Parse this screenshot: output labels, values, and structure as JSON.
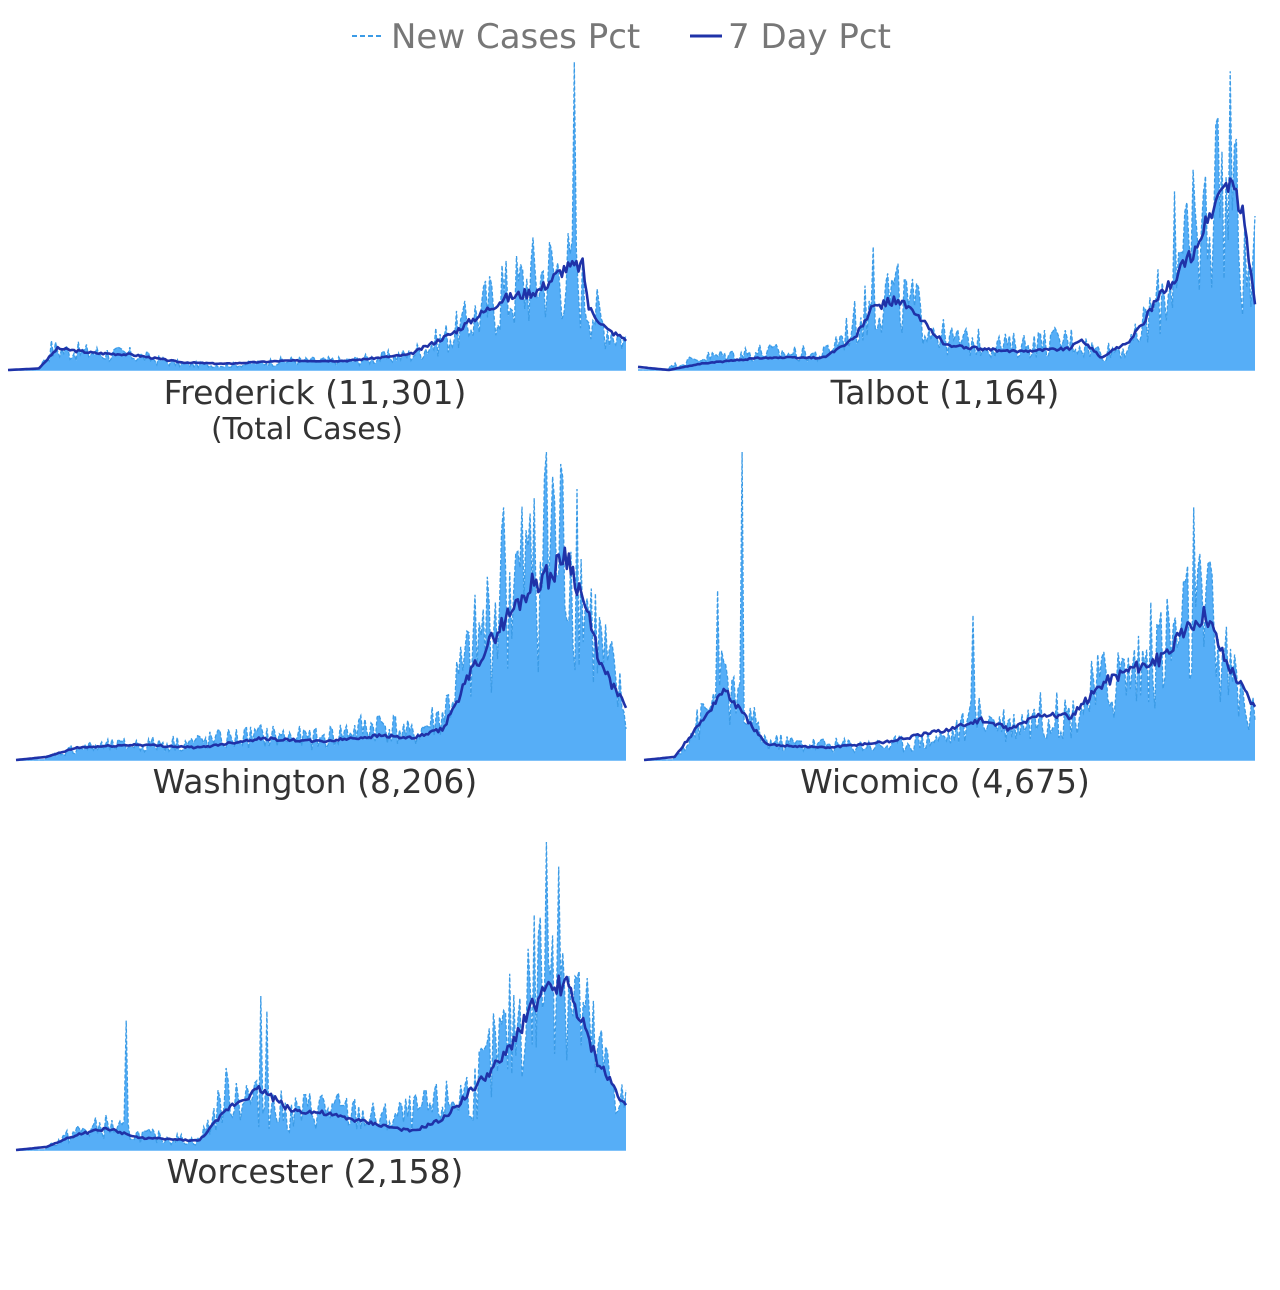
{
  "legend": {
    "items": [
      {
        "label": "New Cases Pct",
        "style": "dashed",
        "color": "#3b9be6"
      },
      {
        "label": "7 Day Pct",
        "style": "solid",
        "color": "#1f32a8"
      }
    ]
  },
  "colors": {
    "area_fill": "#56aef7",
    "new_cases_line": "#3b9be6",
    "seven_day_line": "#1f32a8"
  },
  "chart_data": [
    {
      "type": "area",
      "title": "Frederick (11,301)",
      "subtitle": "(Total Cases)",
      "ylim": [
        0,
        1
      ],
      "series": [
        {
          "name": "New Cases Pct",
          "anchors": [
            [
              0,
              0
            ],
            [
              0.05,
              0.005
            ],
            [
              0.07,
              0.07
            ],
            [
              0.12,
              0.06
            ],
            [
              0.2,
              0.05
            ],
            [
              0.28,
              0.02
            ],
            [
              0.35,
              0.015
            ],
            [
              0.45,
              0.03
            ],
            [
              0.55,
              0.03
            ],
            [
              0.65,
              0.05
            ],
            [
              0.72,
              0.12
            ],
            [
              0.78,
              0.22
            ],
            [
              0.83,
              0.28
            ],
            [
              0.86,
              0.32
            ],
            [
              0.9,
              0.34
            ],
            [
              0.93,
              0.27
            ],
            [
              0.96,
              0.16
            ],
            [
              1,
              0.1
            ]
          ],
          "spikes": [
            [
              0.915,
              1.0
            ],
            [
              0.88,
              0.38
            ],
            [
              0.85,
              0.37
            ],
            [
              0.8,
              0.34
            ]
          ]
        },
        {
          "name": "7 Day Pct",
          "anchors": [
            [
              0,
              0
            ],
            [
              0.05,
              0.005
            ],
            [
              0.08,
              0.07
            ],
            [
              0.14,
              0.055
            ],
            [
              0.2,
              0.05
            ],
            [
              0.28,
              0.025
            ],
            [
              0.35,
              0.02
            ],
            [
              0.45,
              0.03
            ],
            [
              0.55,
              0.03
            ],
            [
              0.65,
              0.05
            ],
            [
              0.72,
              0.12
            ],
            [
              0.8,
              0.23
            ],
            [
              0.86,
              0.26
            ],
            [
              0.9,
              0.33
            ],
            [
              0.93,
              0.34
            ],
            [
              0.94,
              0.2
            ],
            [
              0.97,
              0.13
            ],
            [
              1,
              0.1
            ]
          ]
        }
      ]
    },
    {
      "type": "area",
      "title": "Talbot (1,164)",
      "ylim": [
        0,
        1
      ],
      "series": [
        {
          "name": "New Cases Pct",
          "anchors": [
            [
              0,
              0
            ],
            [
              0.05,
              0.01
            ],
            [
              0.1,
              0.04
            ],
            [
              0.2,
              0.06
            ],
            [
              0.3,
              0.05
            ],
            [
              0.35,
              0.15
            ],
            [
              0.4,
              0.26
            ],
            [
              0.45,
              0.2
            ],
            [
              0.5,
              0.1
            ],
            [
              0.6,
              0.08
            ],
            [
              0.7,
              0.1
            ],
            [
              0.75,
              0.06
            ],
            [
              0.8,
              0.08
            ],
            [
              0.85,
              0.25
            ],
            [
              0.9,
              0.4
            ],
            [
              0.94,
              0.6
            ],
            [
              0.96,
              0.58
            ],
            [
              0.98,
              0.35
            ],
            [
              1,
              0.22
            ]
          ],
          "spikes": [
            [
              0.96,
              0.97
            ],
            [
              0.94,
              0.82
            ],
            [
              0.97,
              0.75
            ],
            [
              0.9,
              0.65
            ],
            [
              0.87,
              0.58
            ],
            [
              1,
              0.5
            ],
            [
              0.38,
              0.4
            ]
          ]
        },
        {
          "name": "7 Day Pct",
          "anchors": [
            [
              0,
              0.01
            ],
            [
              0.05,
              0
            ],
            [
              0.1,
              0.02
            ],
            [
              0.2,
              0.04
            ],
            [
              0.3,
              0.04
            ],
            [
              0.35,
              0.1
            ],
            [
              0.38,
              0.2
            ],
            [
              0.42,
              0.23
            ],
            [
              0.45,
              0.18
            ],
            [
              0.5,
              0.08
            ],
            [
              0.6,
              0.06
            ],
            [
              0.7,
              0.07
            ],
            [
              0.72,
              0.1
            ],
            [
              0.75,
              0.04
            ],
            [
              0.8,
              0.1
            ],
            [
              0.85,
              0.25
            ],
            [
              0.9,
              0.38
            ],
            [
              0.94,
              0.56
            ],
            [
              0.96,
              0.62
            ],
            [
              0.98,
              0.5
            ],
            [
              1,
              0.22
            ]
          ]
        }
      ]
    },
    {
      "type": "area",
      "title": "Washington (8,206)",
      "ylim": [
        0,
        1
      ],
      "series": [
        {
          "name": "New Cases Pct",
          "anchors": [
            [
              0,
              0
            ],
            [
              0.05,
              0.01
            ],
            [
              0.1,
              0.04
            ],
            [
              0.2,
              0.05
            ],
            [
              0.3,
              0.06
            ],
            [
              0.4,
              0.08
            ],
            [
              0.5,
              0.07
            ],
            [
              0.6,
              0.12
            ],
            [
              0.65,
              0.08
            ],
            [
              0.7,
              0.15
            ],
            [
              0.75,
              0.35
            ],
            [
              0.8,
              0.55
            ],
            [
              0.85,
              0.62
            ],
            [
              0.88,
              0.68
            ],
            [
              0.9,
              0.72
            ],
            [
              0.93,
              0.55
            ],
            [
              0.96,
              0.35
            ],
            [
              1,
              0.15
            ]
          ],
          "spikes": [
            [
              0.87,
              1.0
            ],
            [
              0.88,
              0.92
            ],
            [
              0.85,
              0.85
            ],
            [
              0.8,
              0.82
            ],
            [
              0.92,
              0.88
            ]
          ]
        },
        {
          "name": "7 Day Pct",
          "anchors": [
            [
              0,
              0
            ],
            [
              0.05,
              0.01
            ],
            [
              0.1,
              0.04
            ],
            [
              0.2,
              0.05
            ],
            [
              0.3,
              0.04
            ],
            [
              0.4,
              0.07
            ],
            [
              0.5,
              0.06
            ],
            [
              0.6,
              0.08
            ],
            [
              0.65,
              0.07
            ],
            [
              0.7,
              0.1
            ],
            [
              0.75,
              0.3
            ],
            [
              0.8,
              0.45
            ],
            [
              0.85,
              0.58
            ],
            [
              0.88,
              0.6
            ],
            [
              0.9,
              0.68
            ],
            [
              0.93,
              0.52
            ],
            [
              0.96,
              0.3
            ],
            [
              1,
              0.17
            ]
          ]
        }
      ]
    },
    {
      "type": "area",
      "title": "Wicomico (4,675)",
      "ylim": [
        0,
        1
      ],
      "series": [
        {
          "name": "New Cases Pct",
          "anchors": [
            [
              0,
              0
            ],
            [
              0.05,
              0.01
            ],
            [
              0.1,
              0.15
            ],
            [
              0.13,
              0.25
            ],
            [
              0.15,
              0.2
            ],
            [
              0.2,
              0.06
            ],
            [
              0.3,
              0.05
            ],
            [
              0.4,
              0.05
            ],
            [
              0.5,
              0.08
            ],
            [
              0.55,
              0.15
            ],
            [
              0.6,
              0.12
            ],
            [
              0.65,
              0.15
            ],
            [
              0.7,
              0.15
            ],
            [
              0.75,
              0.25
            ],
            [
              0.8,
              0.3
            ],
            [
              0.85,
              0.38
            ],
            [
              0.9,
              0.45
            ],
            [
              0.92,
              0.47
            ],
            [
              0.95,
              0.32
            ],
            [
              1,
              0.13
            ]
          ],
          "spikes": [
            [
              0.16,
              1.0
            ],
            [
              0.12,
              0.55
            ],
            [
              0.54,
              0.47
            ],
            [
              0.9,
              0.82
            ],
            [
              0.89,
              0.63
            ],
            [
              0.93,
              0.6
            ]
          ]
        },
        {
          "name": "7 Day Pct",
          "anchors": [
            [
              0,
              0
            ],
            [
              0.05,
              0.01
            ],
            [
              0.1,
              0.14
            ],
            [
              0.13,
              0.23
            ],
            [
              0.15,
              0.18
            ],
            [
              0.2,
              0.05
            ],
            [
              0.3,
              0.04
            ],
            [
              0.4,
              0.06
            ],
            [
              0.5,
              0.1
            ],
            [
              0.55,
              0.13
            ],
            [
              0.6,
              0.1
            ],
            [
              0.65,
              0.15
            ],
            [
              0.7,
              0.14
            ],
            [
              0.75,
              0.25
            ],
            [
              0.8,
              0.3
            ],
            [
              0.85,
              0.33
            ],
            [
              0.9,
              0.45
            ],
            [
              0.92,
              0.48
            ],
            [
              0.95,
              0.33
            ],
            [
              1,
              0.17
            ]
          ]
        }
      ]
    },
    {
      "type": "area",
      "title": "Worcester (2,158)",
      "ylim": [
        0,
        1
      ],
      "series": [
        {
          "name": "New Cases Pct",
          "anchors": [
            [
              0,
              0
            ],
            [
              0.05,
              0.01
            ],
            [
              0.1,
              0.06
            ],
            [
              0.15,
              0.08
            ],
            [
              0.2,
              0.05
            ],
            [
              0.3,
              0.03
            ],
            [
              0.35,
              0.2
            ],
            [
              0.4,
              0.15
            ],
            [
              0.45,
              0.12
            ],
            [
              0.5,
              0.14
            ],
            [
              0.55,
              0.12
            ],
            [
              0.6,
              0.1
            ],
            [
              0.65,
              0.12
            ],
            [
              0.7,
              0.15
            ],
            [
              0.75,
              0.2
            ],
            [
              0.8,
              0.35
            ],
            [
              0.85,
              0.55
            ],
            [
              0.88,
              0.7
            ],
            [
              0.9,
              0.6
            ],
            [
              0.95,
              0.32
            ],
            [
              1,
              0.15
            ]
          ],
          "spikes": [
            [
              0.87,
              1.0
            ],
            [
              0.89,
              0.92
            ],
            [
              0.18,
              0.42
            ],
            [
              0.4,
              0.5
            ],
            [
              0.41,
              0.45
            ]
          ]
        },
        {
          "name": "7 Day Pct",
          "anchors": [
            [
              0,
              0
            ],
            [
              0.05,
              0.01
            ],
            [
              0.1,
              0.05
            ],
            [
              0.15,
              0.07
            ],
            [
              0.2,
              0.04
            ],
            [
              0.3,
              0.03
            ],
            [
              0.35,
              0.14
            ],
            [
              0.4,
              0.2
            ],
            [
              0.45,
              0.13
            ],
            [
              0.5,
              0.12
            ],
            [
              0.55,
              0.1
            ],
            [
              0.6,
              0.08
            ],
            [
              0.65,
              0.06
            ],
            [
              0.7,
              0.1
            ],
            [
              0.75,
              0.2
            ],
            [
              0.8,
              0.3
            ],
            [
              0.85,
              0.48
            ],
            [
              0.9,
              0.55
            ],
            [
              0.95,
              0.3
            ],
            [
              1,
              0.14
            ]
          ]
        }
      ]
    }
  ]
}
